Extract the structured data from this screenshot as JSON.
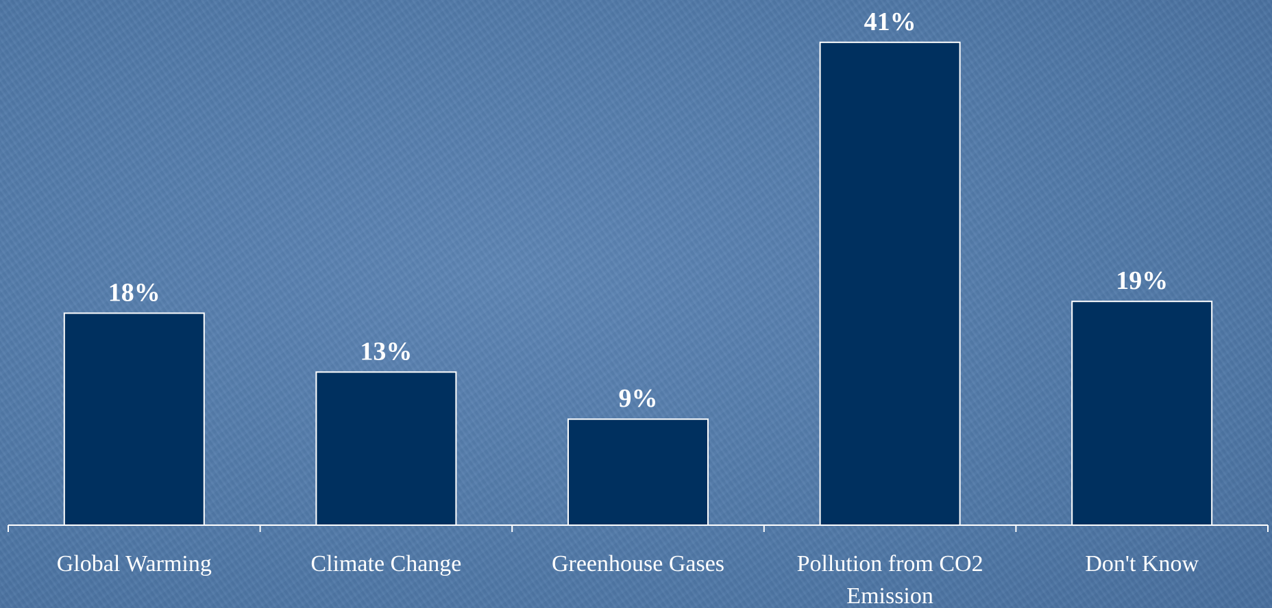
{
  "chart_data": {
    "type": "bar",
    "categories": [
      "Global Warming",
      "Climate Change",
      "Greenhouse Gases",
      "Pollution from CO2 Emission",
      "Don't Know"
    ],
    "category_lines": [
      [
        "Global Warming"
      ],
      [
        "Climate Change"
      ],
      [
        "Greenhouse Gases"
      ],
      [
        "Pollution from CO2",
        "Emission"
      ],
      [
        "Don't Know"
      ]
    ],
    "values": [
      18,
      13,
      9,
      41,
      19
    ],
    "value_labels": [
      "18%",
      "13%",
      "9%",
      "41%",
      "19%"
    ],
    "ylim": [
      0,
      41
    ],
    "grid": false,
    "bar_color": "#00305f",
    "bar_outline_color": "#ffffff",
    "text_color": "#ffffff"
  }
}
